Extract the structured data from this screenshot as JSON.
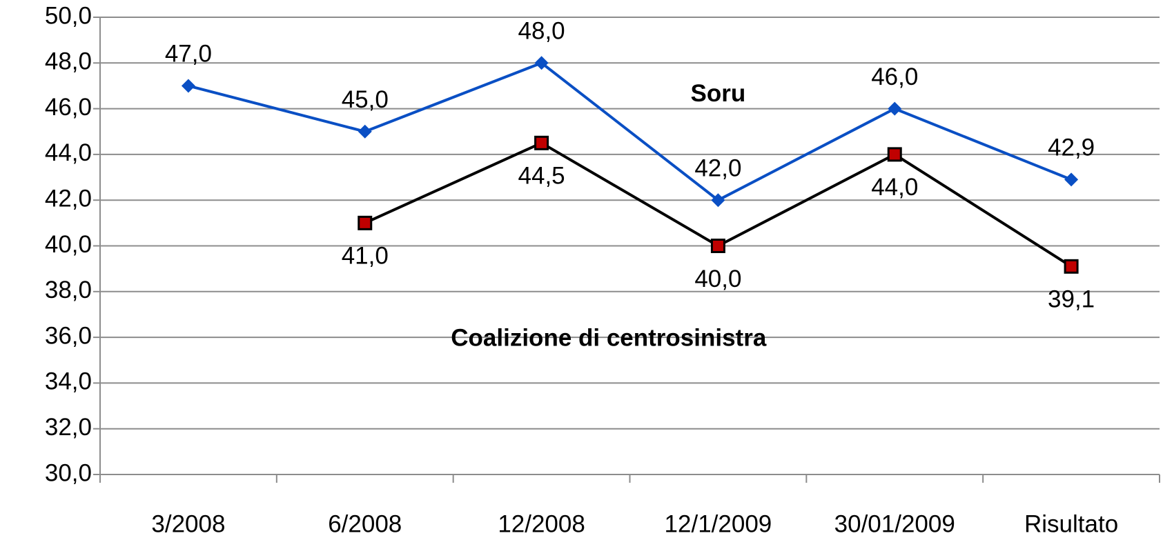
{
  "chart_data": {
    "type": "line",
    "categories": [
      "3/2008",
      "6/2008",
      "12/2008",
      "12/1/2009",
      "30/01/2009",
      "Risultato"
    ],
    "series": [
      {
        "name": "Soru",
        "color": "#0a4fc4",
        "marker": "diamond",
        "values": [
          47.0,
          45.0,
          48.0,
          42.0,
          46.0,
          42.9
        ],
        "value_labels": [
          "47,0",
          "45,0",
          "48,0",
          "42,0",
          "46,0",
          "42,9"
        ]
      },
      {
        "name": "Coalizione di centrosinistra",
        "color": "#000000",
        "marker_color": "#c00000",
        "marker": "square",
        "values": [
          null,
          41.0,
          44.5,
          40.0,
          44.0,
          39.1
        ],
        "value_labels": [
          null,
          "41,0",
          "44,5",
          "40,0",
          "44,0",
          "39,1"
        ]
      }
    ],
    "ylim": [
      30,
      50
    ],
    "yticks": [
      {
        "value": 30,
        "label": "30,0"
      },
      {
        "value": 32,
        "label": "32,0"
      },
      {
        "value": 34,
        "label": "34,0"
      },
      {
        "value": 36,
        "label": "36,0"
      },
      {
        "value": 38,
        "label": "38,0"
      },
      {
        "value": 40,
        "label": "40,0"
      },
      {
        "value": 42,
        "label": "42,0"
      },
      {
        "value": 44,
        "label": "44,0"
      },
      {
        "value": 46,
        "label": "46,0"
      },
      {
        "value": 48,
        "label": "48,0"
      },
      {
        "value": 50,
        "label": "50,0"
      }
    ],
    "grid": true
  }
}
